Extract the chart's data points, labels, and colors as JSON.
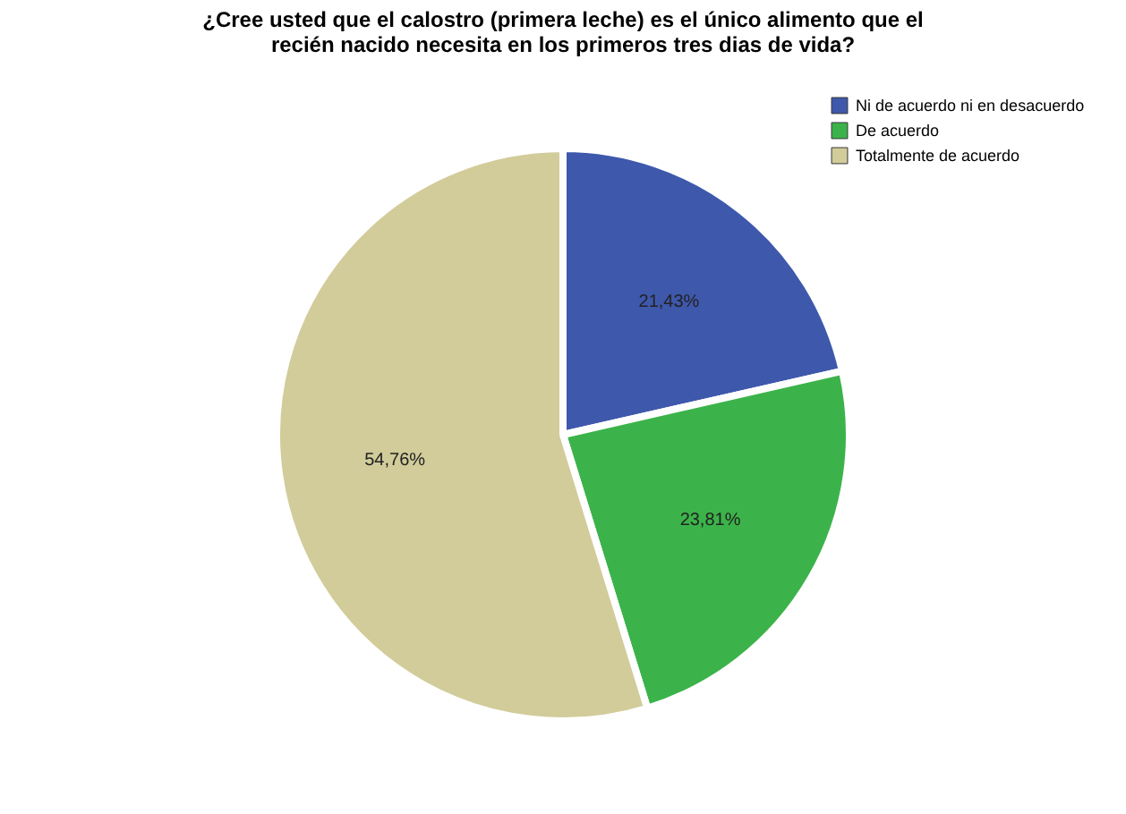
{
  "chart_data": {
    "type": "pie",
    "title": "¿Cree usted que el calostro (primera leche) es el único alimento que el recién nacido necesita en los primeros tres dias de vida?",
    "categories": [
      "Ni de acuerdo ni en desacuerdo",
      "De acuerdo",
      "Totalmente de acuerdo"
    ],
    "values": [
      21.43,
      23.81,
      54.76
    ],
    "colors": [
      "#3e58ac",
      "#3cb34a",
      "#d2cc9a"
    ],
    "value_labels": [
      "21,43%",
      "23,81%",
      "54,76%"
    ],
    "legend": "top right"
  }
}
